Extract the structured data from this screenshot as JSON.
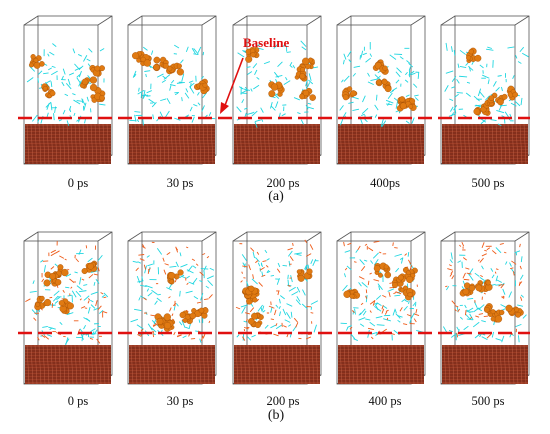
{
  "panels": [
    {
      "label": "(a)",
      "snapshots": [
        {
          "time": "0 ps",
          "layer_level": 0.55,
          "spread": 0.35
        },
        {
          "time": "30 ps",
          "layer_level": 0.62,
          "spread": 0.45
        },
        {
          "time": "200 ps",
          "layer_level": 0.62,
          "spread": 0.5
        },
        {
          "time": "400ps",
          "layer_level": 0.6,
          "spread": 0.55
        },
        {
          "time": "500 ps",
          "layer_level": 0.6,
          "spread": 0.55
        }
      ]
    },
    {
      "label": "(b)",
      "snapshots": [
        {
          "time": "0 ps",
          "layer_level": 0.5,
          "spread": 0.5
        },
        {
          "time": "30 ps",
          "layer_level": 0.5,
          "spread": 0.55
        },
        {
          "time": "200 ps",
          "layer_level": 0.5,
          "spread": 0.55
        },
        {
          "time": "400 ps",
          "layer_level": 0.45,
          "spread": 0.6
        },
        {
          "time": "500 ps",
          "layer_level": 0.45,
          "spread": 0.6
        }
      ]
    }
  ],
  "annotation": {
    "text": "Baseline"
  },
  "colors": {
    "substrate": "#9a3b24",
    "substrate_dark": "#5e1d10",
    "asphaltene": "#e07a12",
    "molecule_cyan": "#1fd6e0",
    "molecule_red": "#ee5a18",
    "baseline": "#e01010",
    "frame": "#555555"
  }
}
